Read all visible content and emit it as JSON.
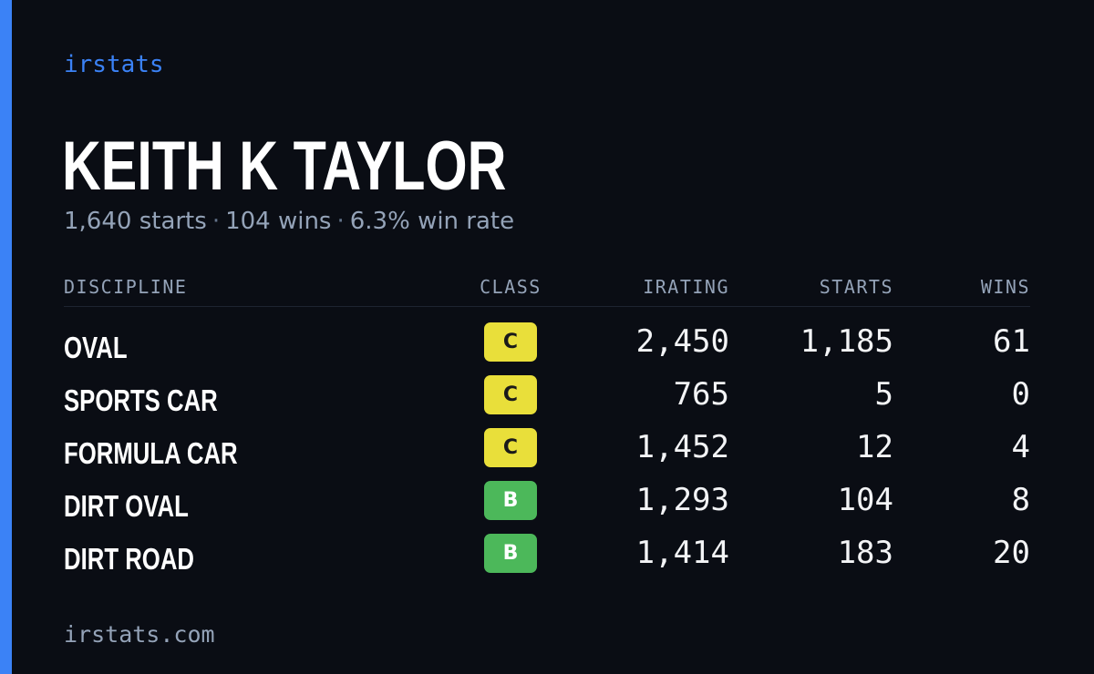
{
  "brand": "irstats",
  "driver": {
    "name": "KEITH K TAYLOR",
    "summary": [
      "1,640 starts",
      "104 wins",
      "6.3% win rate"
    ]
  },
  "colors": {
    "accent": "#3b82f6",
    "background": "#0a0d14",
    "class_c": "#e9df3a",
    "class_b": "#4cb85a"
  },
  "table": {
    "headers": {
      "discipline": "DISCIPLINE",
      "class": "CLASS",
      "irating": "IRATING",
      "starts": "STARTS",
      "wins": "WINS"
    },
    "rows": [
      {
        "discipline": "OVAL",
        "class": "C",
        "irating": "2,450",
        "starts": "1,185",
        "wins": "61"
      },
      {
        "discipline": "SPORTS CAR",
        "class": "C",
        "irating": "765",
        "starts": "5",
        "wins": "0"
      },
      {
        "discipline": "FORMULA CAR",
        "class": "C",
        "irating": "1,452",
        "starts": "12",
        "wins": "4"
      },
      {
        "discipline": "DIRT OVAL",
        "class": "B",
        "irating": "1,293",
        "starts": "104",
        "wins": "8"
      },
      {
        "discipline": "DIRT ROAD",
        "class": "B",
        "irating": "1,414",
        "starts": "183",
        "wins": "20"
      }
    ]
  },
  "footer": "irstats.com"
}
